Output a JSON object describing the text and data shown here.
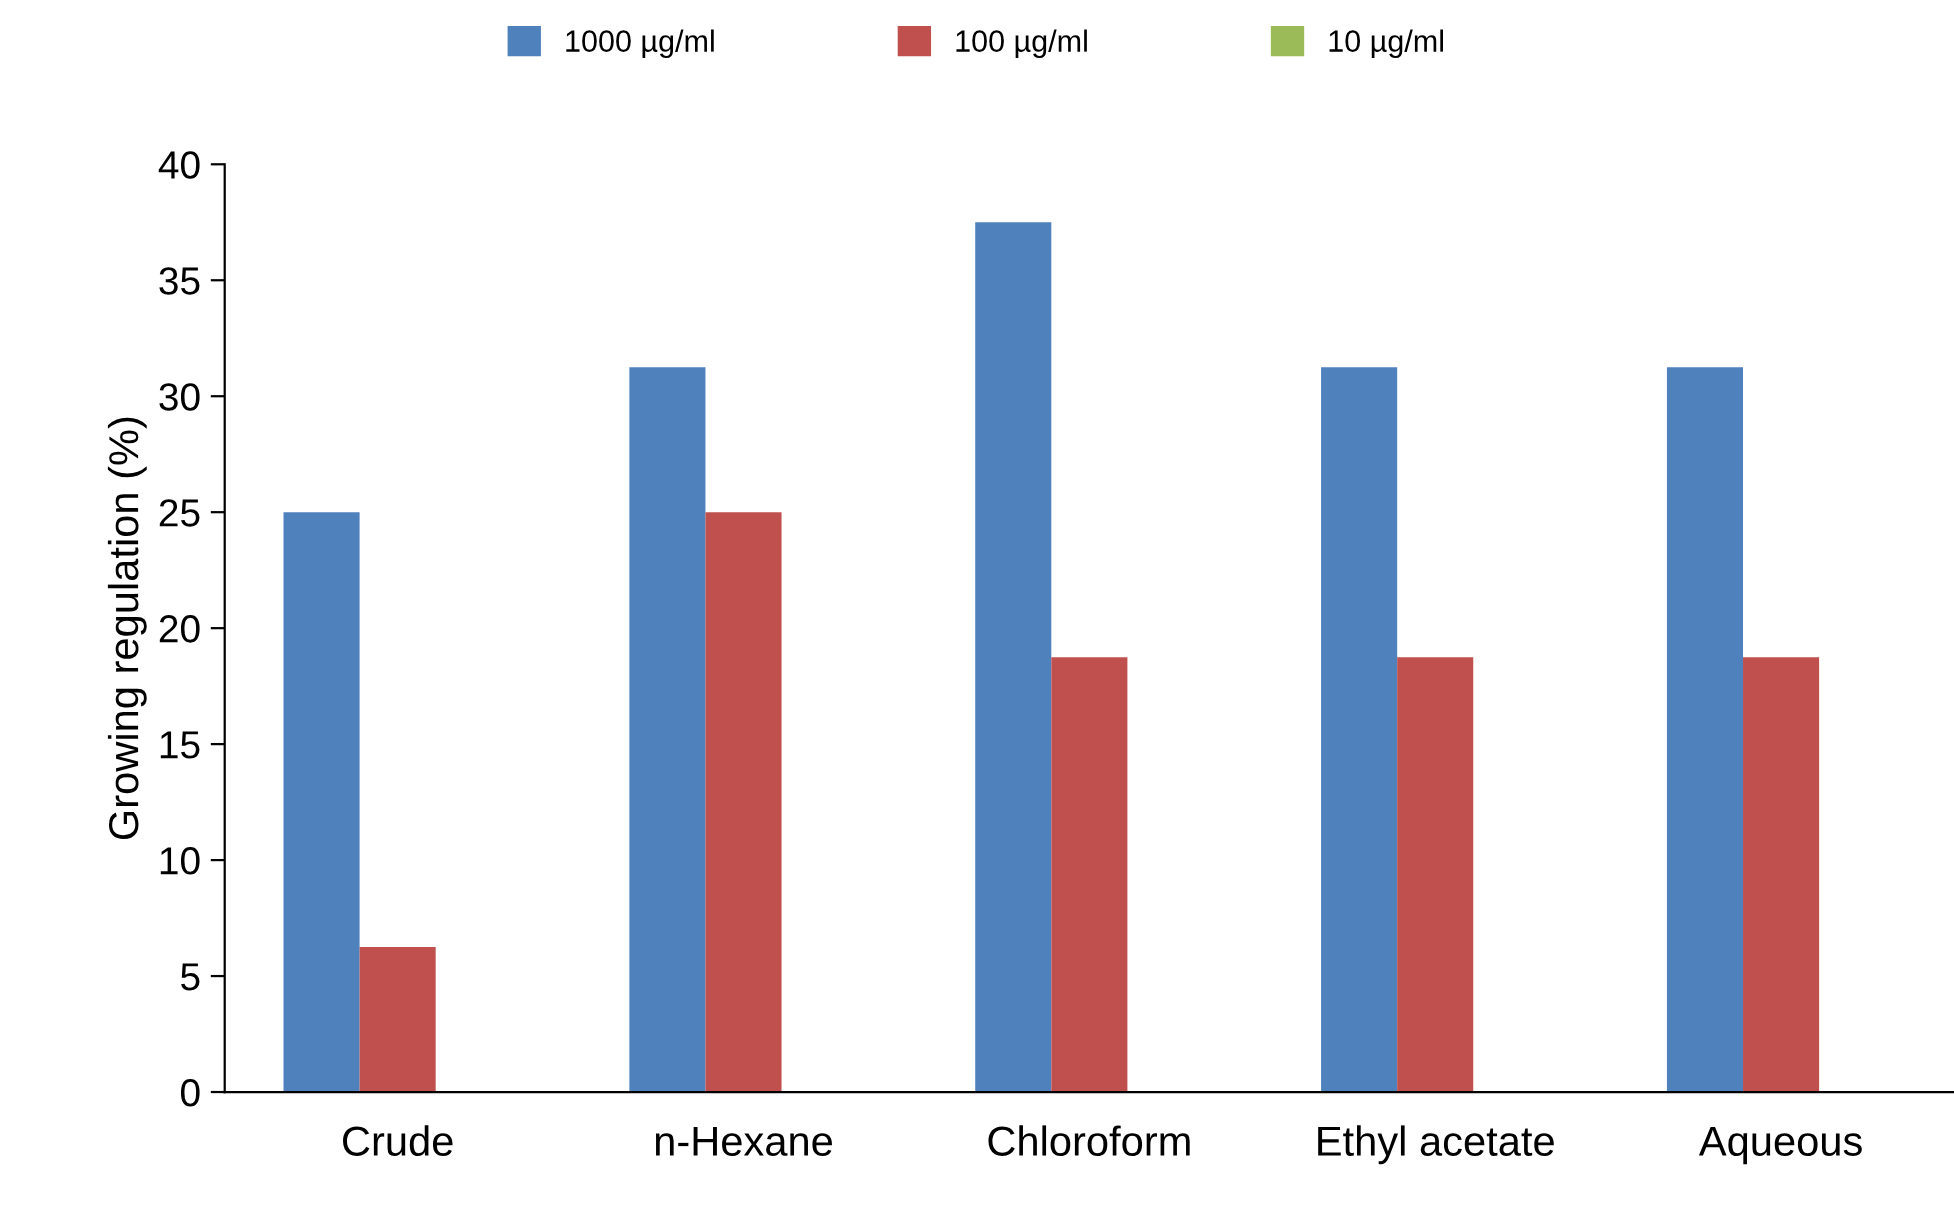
{
  "chart_data": {
    "type": "bar",
    "ylabel": "Growing regulation (%)",
    "categories": [
      "Crude",
      "n-Hexane",
      "Chloroform",
      "Ethyl acetate",
      "Aqueous"
    ],
    "series": [
      {
        "name": "1000 µg/ml",
        "color": "#4f81bd",
        "values": [
          25,
          31.25,
          37.5,
          31.25,
          31.25
        ]
      },
      {
        "name": "100 µg/ml",
        "color": "#c0504d",
        "values": [
          6.25,
          25,
          18.75,
          18.75,
          18.75
        ]
      },
      {
        "name": "10 µg/ml",
        "color": "#9bbb59",
        "values": [
          0,
          0,
          0,
          0,
          0
        ]
      }
    ],
    "ylim": [
      0,
      40
    ],
    "yticks": [
      0,
      5,
      10,
      15,
      20,
      25,
      30,
      35,
      40
    ],
    "grid": false,
    "legend": "top"
  }
}
